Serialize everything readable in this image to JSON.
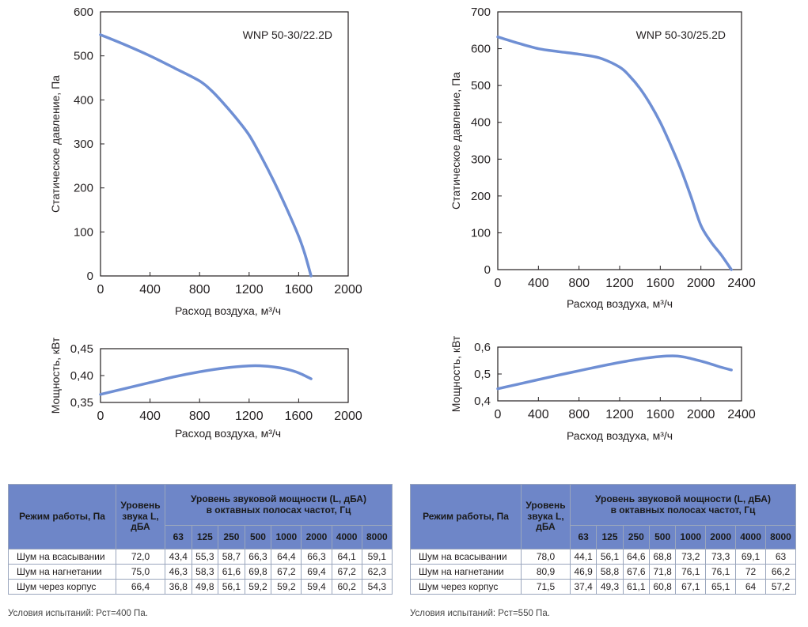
{
  "colors": {
    "curve": "#6f8fd4",
    "header_bg": "#6e86c8",
    "frame": "#231f20"
  },
  "chart_data": [
    {
      "id": "p1",
      "type": "line",
      "title": "WNP 50-30/22.2D",
      "xlabel": "Расход воздуха, м³/ч",
      "ylabel": "Статическое давление, Па",
      "xlim": [
        0,
        2000
      ],
      "ylim": [
        0,
        600
      ],
      "xticks": [
        "0",
        "400",
        "800",
        "1200",
        "1600",
        "2000"
      ],
      "yticks": [
        "0",
        "100",
        "200",
        "300",
        "400",
        "500",
        "600"
      ],
      "series": [
        {
          "x": [
            0,
            200,
            400,
            600,
            800,
            900,
            1000,
            1100,
            1200,
            1300,
            1400,
            1500,
            1600,
            1650,
            1700
          ],
          "y": [
            548,
            525,
            500,
            472,
            443,
            420,
            390,
            357,
            320,
            270,
            215,
            155,
            90,
            50,
            0
          ]
        }
      ]
    },
    {
      "id": "p2",
      "type": "line",
      "title": "WNP 50-30/25.2D",
      "xlabel": "Расход воздуха, м³/ч",
      "ylabel": "Статическое давление, Па",
      "xlim": [
        0,
        2400
      ],
      "ylim": [
        0,
        700
      ],
      "xticks": [
        "0",
        "400",
        "800",
        "1200",
        "1600",
        "2000",
        "2400"
      ],
      "yticks": [
        "0",
        "100",
        "200",
        "300",
        "400",
        "500",
        "600",
        "700"
      ],
      "series": [
        {
          "x": [
            0,
            200,
            400,
            600,
            800,
            1000,
            1200,
            1300,
            1400,
            1500,
            1600,
            1700,
            1800,
            1900,
            2000,
            2100,
            2200,
            2300
          ],
          "y": [
            632,
            615,
            600,
            592,
            585,
            575,
            550,
            525,
            492,
            450,
            400,
            340,
            275,
            200,
            120,
            75,
            40,
            0
          ]
        }
      ]
    },
    {
      "id": "w1",
      "type": "line",
      "title": "",
      "xlabel": "Расход воздуха, м³/ч",
      "ylabel": "Мощность, кВт",
      "xlim": [
        0,
        2000
      ],
      "ylim": [
        0.35,
        0.45
      ],
      "xticks": [
        "0",
        "400",
        "800",
        "1200",
        "1600",
        "2000"
      ],
      "yticks": [
        "0,35",
        "0,40",
        "0,45"
      ],
      "series": [
        {
          "x": [
            0,
            200,
            400,
            600,
            800,
            1000,
            1200,
            1300,
            1400,
            1500,
            1600,
            1700
          ],
          "y": [
            0.365,
            0.376,
            0.387,
            0.398,
            0.407,
            0.414,
            0.418,
            0.418,
            0.416,
            0.412,
            0.405,
            0.394
          ]
        }
      ]
    },
    {
      "id": "w2",
      "type": "line",
      "title": "",
      "xlabel": "Расход воздуха, м³/ч",
      "ylabel": "Мощность, кВт",
      "xlim": [
        0,
        2400
      ],
      "ylim": [
        0.4,
        0.6
      ],
      "xticks": [
        "0",
        "400",
        "800",
        "1200",
        "1600",
        "2000",
        "2400"
      ],
      "yticks": [
        "0,4",
        "0,5",
        "0,6"
      ],
      "series": [
        {
          "x": [
            0,
            200,
            400,
            600,
            800,
            1000,
            1200,
            1400,
            1600,
            1750,
            1850,
            2000,
            2100,
            2200,
            2300
          ],
          "y": [
            0.445,
            0.462,
            0.479,
            0.496,
            0.512,
            0.528,
            0.543,
            0.556,
            0.565,
            0.567,
            0.562,
            0.548,
            0.537,
            0.525,
            0.515
          ]
        }
      ]
    }
  ],
  "tables": [
    {
      "mode_header": "Режим работы, Па",
      "level_header": "Уровень звука L, дБА",
      "power_header_line1": "Уровень звуковой мощности (L, дБА)",
      "power_header_line2": "в октавных полосах частот, Гц",
      "freqs": [
        "63",
        "125",
        "250",
        "500",
        "1000",
        "2000",
        "4000",
        "8000"
      ],
      "rows": [
        {
          "mode": "Шум на всасывании",
          "level": "72,0",
          "bands": [
            "43,4",
            "55,3",
            "58,7",
            "66,3",
            "64,4",
            "66,3",
            "64,1",
            "59,1"
          ]
        },
        {
          "mode": "Шум на нагнетании",
          "level": "75,0",
          "bands": [
            "46,3",
            "58,3",
            "61,6",
            "69,8",
            "67,2",
            "69,4",
            "67,2",
            "62,3"
          ]
        },
        {
          "mode": "Шум через корпус",
          "level": "66,4",
          "bands": [
            "36,8",
            "49,8",
            "56,1",
            "59,2",
            "59,2",
            "59,4",
            "60,2",
            "54,3"
          ]
        }
      ],
      "conditions": "Условия испытаний: Pст=400 Па."
    },
    {
      "mode_header": "Режим работы, Па",
      "level_header": "Уровень звука L, дБА",
      "power_header_line1": "Уровень звуковой мощности (L, дБА)",
      "power_header_line2": "в октавных полосах частот, Гц",
      "freqs": [
        "63",
        "125",
        "250",
        "500",
        "1000",
        "2000",
        "4000",
        "8000"
      ],
      "rows": [
        {
          "mode": "Шум на всасывании",
          "level": "78,0",
          "bands": [
            "44,1",
            "56,1",
            "64,6",
            "68,8",
            "73,2",
            "73,3",
            "69,1",
            "63"
          ]
        },
        {
          "mode": "Шум на нагнетании",
          "level": "80,9",
          "bands": [
            "46,9",
            "58,8",
            "67,6",
            "71,8",
            "76,1",
            "76,1",
            "72",
            "66,2"
          ]
        },
        {
          "mode": "Шум через корпус",
          "level": "71,5",
          "bands": [
            "37,4",
            "49,3",
            "61,1",
            "60,8",
            "67,1",
            "65,1",
            "64",
            "57,2"
          ]
        }
      ],
      "conditions": "Условия испытаний: Pст=550 Па."
    }
  ]
}
